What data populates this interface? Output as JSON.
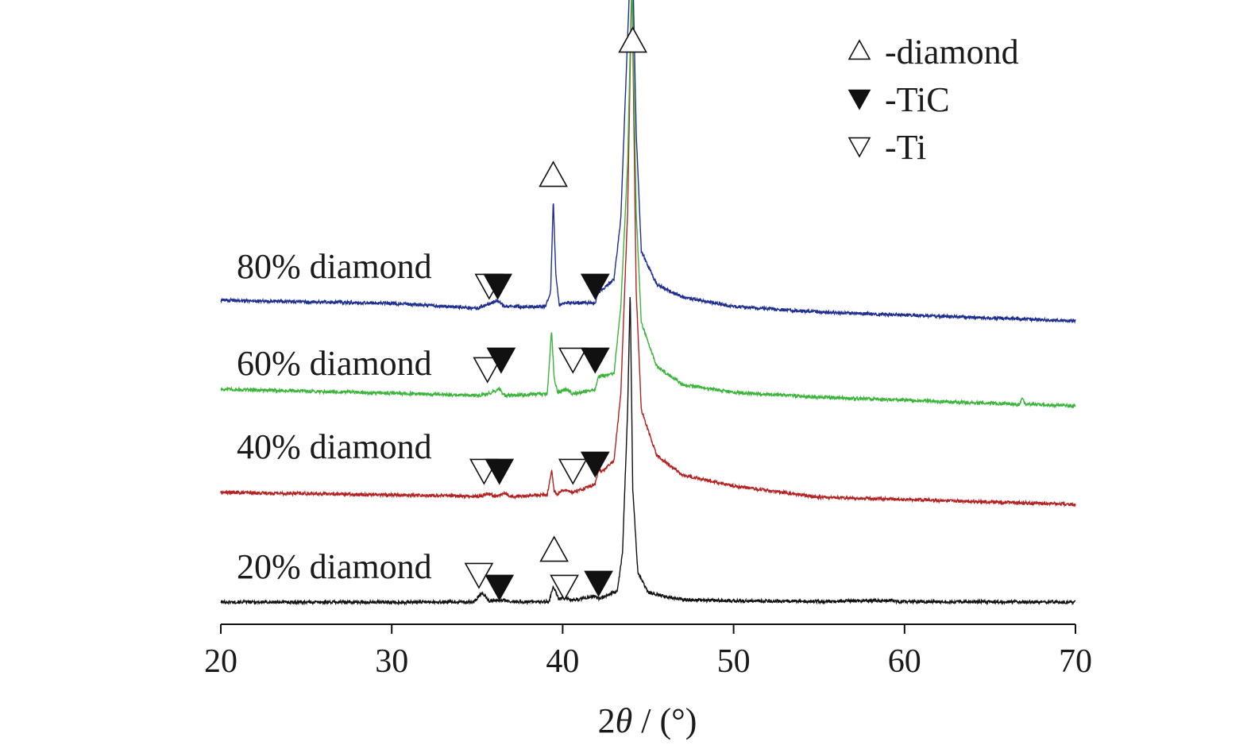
{
  "chart_data": {
    "type": "line",
    "title": "",
    "xlabel_prefix": "2",
    "xlabel_theta": "θ",
    "xlabel_unit": " / (°)",
    "ylabel": "",
    "xlim": [
      20,
      70
    ],
    "x_ticks": [
      20,
      30,
      40,
      50,
      60,
      70
    ],
    "x_tick_labels": [
      "20",
      "30",
      "40",
      "50",
      "60",
      "70"
    ],
    "grid": false,
    "y_axis_shown": false,
    "legend_position": "top-right",
    "legend": [
      {
        "symbol": "open-triangle-up",
        "label": "-diamond"
      },
      {
        "symbol": "filled-triangle-down",
        "label": "-TiC"
      },
      {
        "symbol": "open-triangle-down",
        "label": "-Ti"
      }
    ],
    "series": [
      {
        "name": "20% diamond",
        "color": "#111111",
        "baseline": 8,
        "slope": 0.025,
        "x": [
          20,
          30,
          34.8,
          35.3,
          35.7,
          36.2,
          37,
          39.2,
          39.45,
          39.75,
          40.1,
          40.6,
          41.9,
          42.1,
          43.2,
          43.5,
          43.8,
          43.95,
          44.1,
          44.4,
          45,
          47,
          50,
          55,
          59.2,
          59.6,
          62,
          70
        ],
        "y": [
          8,
          7.8,
          8,
          20,
          9,
          11,
          8.2,
          8.4,
          28,
          12,
          14,
          10,
          16,
          12,
          22,
          70,
          250,
          400,
          150,
          45,
          20,
          11,
          9.5,
          8.8,
          10,
          8.6,
          8.4,
          8
        ],
        "annotations": [
          {
            "symbol": "open-triangle-down",
            "x": 35.1,
            "y": 43
          },
          {
            "symbol": "filled-triangle-down",
            "x": 36.3,
            "y": 28
          },
          {
            "symbol": "open-triangle-up",
            "x": 39.5,
            "y": 73
          },
          {
            "symbol": "open-triangle-down",
            "x": 40.1,
            "y": 28
          },
          {
            "symbol": "filled-triangle-down",
            "x": 42.1,
            "y": 33
          }
        ]
      },
      {
        "name": "40% diamond",
        "color": "#b22222",
        "baseline": 146,
        "slope": -0.2,
        "x": [
          20,
          30,
          35.2,
          35.6,
          36.1,
          36.6,
          37,
          39.1,
          39.35,
          39.5,
          39.7,
          40.1,
          40.6,
          41.9,
          42.1,
          42.3,
          43,
          43.4,
          43.8,
          44.05,
          44.3,
          44.6,
          45.5,
          47,
          50,
          55,
          70
        ],
        "y": [
          146,
          143,
          141,
          145,
          141,
          145,
          141,
          143,
          175,
          148,
          144,
          150,
          146,
          156,
          175,
          172,
          186,
          270,
          500,
          800,
          400,
          250,
          193,
          168,
          154,
          140,
          131
        ],
        "annotations": [
          {
            "symbol": "open-triangle-down",
            "x": 35.4,
            "y": 174
          },
          {
            "symbol": "filled-triangle-down",
            "x": 36.3,
            "y": 174
          },
          {
            "symbol": "open-triangle-down",
            "x": 40.6,
            "y": 174
          },
          {
            "symbol": "filled-triangle-down",
            "x": 41.9,
            "y": 183
          }
        ]
      },
      {
        "name": "60% diamond",
        "color": "#3cb43c",
        "baseline": 276,
        "slope": -0.25,
        "x": [
          20,
          30,
          35,
          35.6,
          36.3,
          36.6,
          39.1,
          39.35,
          39.5,
          39.7,
          40.2,
          40.6,
          41.9,
          42.1,
          43,
          43.4,
          43.8,
          44.05,
          44.3,
          44.6,
          45.5,
          47,
          50,
          55,
          66.7,
          66.9,
          67.1,
          70
        ],
        "y": [
          276,
          271,
          268,
          270,
          276,
          268,
          270,
          350,
          290,
          272,
          276,
          270,
          276,
          292,
          295,
          380,
          560,
          800,
          500,
          360,
          305,
          282,
          272,
          266,
          257,
          264,
          257,
          255
        ],
        "annotations": [
          {
            "symbol": "open-triangle-down",
            "x": 35.6,
            "y": 302
          },
          {
            "symbol": "filled-triangle-down",
            "x": 36.4,
            "y": 314
          },
          {
            "symbol": "open-triangle-down",
            "x": 40.6,
            "y": 314
          },
          {
            "symbol": "filled-triangle-down",
            "x": 41.9,
            "y": 314
          }
        ]
      },
      {
        "name": "80% diamond",
        "color": "#1f2f8f",
        "baseline": 388,
        "slope": -0.3,
        "x": [
          20,
          30,
          35,
          35.6,
          36.2,
          36.6,
          39,
          39.3,
          39.45,
          39.6,
          39.8,
          40.3,
          41.9,
          42.1,
          43,
          43.4,
          43.8,
          44.05,
          44.3,
          44.6,
          45.5,
          47,
          50,
          55,
          70
        ],
        "y": [
          388,
          384,
          378,
          382,
          388,
          380,
          380,
          400,
          515,
          420,
          382,
          385,
          385,
          398,
          414,
          490,
          720,
          860,
          600,
          450,
          408,
          392,
          380,
          373,
          362
        ],
        "annotations": [
          {
            "symbol": "open-triangle-down",
            "x": 35.7,
            "y": 407
          },
          {
            "symbol": "filled-triangle-down",
            "x": 36.2,
            "y": 407
          },
          {
            "symbol": "open-triangle-up",
            "x": 39.45,
            "y": 545
          },
          {
            "symbol": "filled-triangle-down",
            "x": 41.9,
            "y": 407
          },
          {
            "symbol": "open-triangle-up",
            "x": 44.1,
            "y": 714
          }
        ]
      }
    ]
  }
}
